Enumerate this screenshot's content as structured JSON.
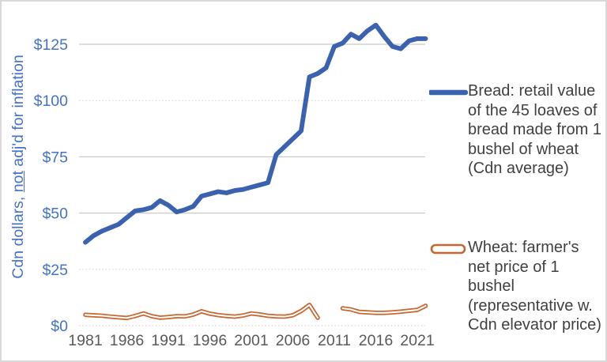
{
  "frame": {
    "background": "#FFFFFF",
    "border_color": "#D9D9D9"
  },
  "axes": {
    "ylabel_pre": "Cdn dollars, ",
    "ylabel_underlined": "not",
    "ylabel_post": " adj'd for inflation",
    "ylabel_full": "Cdn dollars, not adj'd for inflation",
    "y_label_color": "#4472C4",
    "x_label_color": "#595959",
    "y_tick_labels": [
      "$0",
      "$25",
      "$50",
      "$75",
      "$100",
      "$125"
    ],
    "x_tick_labels": [
      "1981",
      "1986",
      "1991",
      "1996",
      "2001",
      "2006",
      "2011",
      "2016",
      "2021"
    ]
  },
  "legend": {
    "text_color": "#404040",
    "bread_label": "Bread: retail value of the 45 loaves of bread made from 1 bushel of wheat (Cdn average)",
    "bread_lines": [
      "Bread: retail value",
      "of the 45 loaves of",
      "bread made from 1",
      "bushel of wheat",
      "(Cdn average)"
    ],
    "wheat_label": "Wheat: farmer's net price of 1 bushel (representative w. Cdn elevator price)",
    "wheat_lines": [
      "Wheat: farmer's",
      "net price of 1",
      "bushel",
      "(representative w.",
      "Cdn elevator price)"
    ]
  },
  "chart_data": {
    "type": "line",
    "title": "",
    "xlabel": "",
    "ylabel": "Cdn dollars, not adj'd for inflation",
    "xlim": [
      1981,
      2022
    ],
    "ylim": [
      0,
      137.5
    ],
    "x_ticks": [
      1981,
      1986,
      1991,
      1996,
      2001,
      2006,
      2011,
      2016,
      2021
    ],
    "y_ticks": [
      0,
      25,
      50,
      75,
      100,
      125
    ],
    "grid": true,
    "gridline_solid_color": "#C9C9C9",
    "gridline_dotted_color": "#D6D6D6",
    "dotted_gridline_values": [
      100,
      25,
      0
    ],
    "legend_position": "right",
    "series": [
      {
        "name": "Bread: retail value of the 45 loaves of bread made from 1 bushel of wheat (Cdn average)",
        "color": "#3A62AE",
        "line_style": "solid-thick",
        "x": [
          1981,
          1982,
          1983,
          1984,
          1985,
          1986,
          1987,
          1988,
          1989,
          1990,
          1991,
          1992,
          1993,
          1994,
          1995,
          1996,
          1997,
          1998,
          1999,
          2000,
          2001,
          2002,
          2003,
          2004,
          2005,
          2006,
          2007,
          2008,
          2009,
          2010,
          2011,
          2012,
          2013,
          2014,
          2015,
          2016,
          2017,
          2018,
          2019,
          2020,
          2021,
          2022
        ],
        "values": [
          37,
          40,
          42,
          43.5,
          45,
          48,
          51,
          51.5,
          52.5,
          55.5,
          53.5,
          50.5,
          51.5,
          53,
          57.5,
          58.5,
          59.5,
          59,
          60,
          60.5,
          61.5,
          62.5,
          63.5,
          76,
          79.5,
          83,
          86.5,
          110.5,
          112,
          114.5,
          124,
          125.5,
          129.5,
          127.5,
          131,
          133.5,
          128.5,
          124,
          123,
          126.5,
          127.5,
          127.5
        ]
      },
      {
        "name": "Wheat: farmer's net price of 1 bushel (representative w. Cdn elevator price)",
        "color": "#C7662F",
        "line_style": "double-outline",
        "segments": [
          {
            "x": [
              1981,
              1982,
              1983,
              1984,
              1985,
              1986,
              1987,
              1988,
              1989,
              1990,
              1991,
              1992,
              1993,
              1994,
              1995,
              1996,
              1997,
              1998,
              1999,
              2000,
              2001,
              2002,
              2003,
              2004,
              2005,
              2006,
              2007,
              2008,
              2009
            ],
            "values": [
              4.8,
              4.6,
              4.4,
              4.0,
              3.7,
              3.4,
              4.3,
              5.4,
              4.2,
              3.5,
              3.8,
              4.2,
              4.1,
              4.9,
              6.4,
              5.3,
              4.7,
              4.3,
              4.0,
              4.5,
              5.4,
              5.0,
              4.4,
              4.1,
              4.0,
              4.6,
              6.5,
              9.2,
              3.5
            ]
          },
          {
            "x": [
              2012,
              2013,
              2014,
              2015,
              2016,
              2017,
              2018,
              2019,
              2020,
              2021,
              2022
            ],
            "values": [
              7.7,
              7.2,
              6.1,
              5.9,
              5.7,
              5.7,
              5.9,
              6.2,
              6.6,
              7.0,
              8.8
            ]
          }
        ]
      }
    ]
  }
}
